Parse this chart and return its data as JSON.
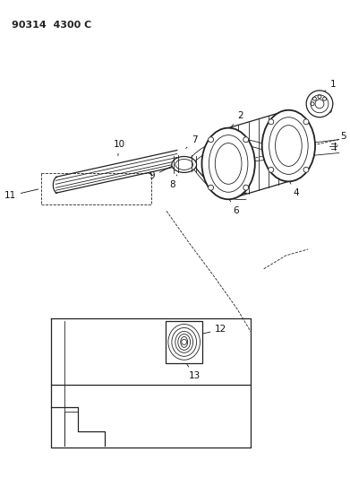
{
  "title": "90314  4300 C",
  "background_color": "#ffffff",
  "line_color": "#222222",
  "fig_width": 3.91,
  "fig_height": 5.33,
  "dpi": 100
}
